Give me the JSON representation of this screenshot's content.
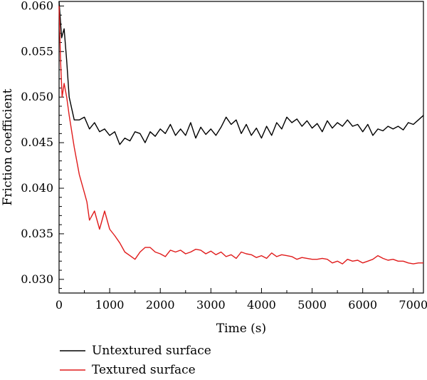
{
  "chart_data": {
    "type": "line",
    "title": "",
    "xlabel": "Time (s)",
    "ylabel": "Friction coefficient",
    "xlim": [
      0,
      7200
    ],
    "ylim": [
      0.0285,
      0.0605
    ],
    "xticks": [
      0,
      1000,
      2000,
      3000,
      4000,
      5000,
      6000,
      7000
    ],
    "xtick_labels": [
      "0",
      "1000",
      "2000",
      "3000",
      "4000",
      "5000",
      "6000",
      "7000"
    ],
    "yticks": [
      0.03,
      0.035,
      0.04,
      0.045,
      0.05,
      0.055,
      0.06
    ],
    "ytick_labels": [
      "0.030",
      "0.035",
      "0.040",
      "0.045",
      "0.050",
      "0.055",
      "0.060"
    ],
    "grid": false,
    "legend_position": "bottom-left",
    "series": [
      {
        "name": "Untextured surface",
        "color": "#000000",
        "x": [
          0,
          50,
          100,
          150,
          200,
          300,
          400,
          500,
          600,
          700,
          800,
          900,
          1000,
          1100,
          1200,
          1300,
          1400,
          1500,
          1600,
          1700,
          1800,
          1900,
          2000,
          2100,
          2200,
          2300,
          2400,
          2500,
          2600,
          2700,
          2800,
          2900,
          3000,
          3100,
          3200,
          3300,
          3400,
          3500,
          3600,
          3700,
          3800,
          3900,
          4000,
          4100,
          4200,
          4300,
          4400,
          4500,
          4600,
          4700,
          4800,
          4900,
          5000,
          5100,
          5200,
          5300,
          5400,
          5500,
          5600,
          5700,
          5800,
          5900,
          6000,
          6100,
          6200,
          6300,
          6400,
          6500,
          6600,
          6700,
          6800,
          6900,
          7000,
          7100,
          7200
        ],
        "y": [
          0.0605,
          0.0565,
          0.0575,
          0.054,
          0.05,
          0.0475,
          0.0475,
          0.0478,
          0.0465,
          0.0472,
          0.0462,
          0.0465,
          0.0458,
          0.0462,
          0.0448,
          0.0455,
          0.0452,
          0.0462,
          0.046,
          0.045,
          0.0462,
          0.0457,
          0.0465,
          0.046,
          0.047,
          0.0458,
          0.0465,
          0.0458,
          0.0472,
          0.0455,
          0.0467,
          0.0459,
          0.0465,
          0.0458,
          0.0467,
          0.0478,
          0.047,
          0.0475,
          0.046,
          0.047,
          0.0458,
          0.0466,
          0.0455,
          0.0468,
          0.0458,
          0.0472,
          0.0465,
          0.0478,
          0.0472,
          0.0476,
          0.0468,
          0.0474,
          0.0466,
          0.0471,
          0.0462,
          0.0474,
          0.0466,
          0.0472,
          0.0468,
          0.0475,
          0.0468,
          0.047,
          0.0462,
          0.047,
          0.0458,
          0.0465,
          0.0463,
          0.0468,
          0.0465,
          0.0468,
          0.0464,
          0.0472,
          0.047,
          0.0475,
          0.048
        ]
      },
      {
        "name": "Textured surface",
        "color": "#e01b1b",
        "x": [
          0,
          30,
          60,
          100,
          150,
          200,
          300,
          400,
          500,
          550,
          600,
          700,
          800,
          900,
          1000,
          1100,
          1200,
          1300,
          1400,
          1500,
          1600,
          1700,
          1800,
          1900,
          2000,
          2100,
          2200,
          2300,
          2400,
          2500,
          2600,
          2700,
          2800,
          2900,
          3000,
          3100,
          3200,
          3300,
          3400,
          3500,
          3600,
          3700,
          3800,
          3900,
          4000,
          4100,
          4200,
          4300,
          4400,
          4500,
          4600,
          4700,
          4800,
          4900,
          5000,
          5100,
          5200,
          5300,
          5400,
          5500,
          5600,
          5700,
          5800,
          5900,
          6000,
          6100,
          6200,
          6300,
          6400,
          6500,
          6600,
          6700,
          6800,
          6900,
          7000,
          7100,
          7200
        ],
        "y": [
          0.06,
          0.054,
          0.05,
          0.0515,
          0.05,
          0.048,
          0.0445,
          0.0415,
          0.0395,
          0.0385,
          0.0365,
          0.0375,
          0.0355,
          0.0375,
          0.0355,
          0.0348,
          0.034,
          0.033,
          0.0326,
          0.0322,
          0.033,
          0.0335,
          0.0335,
          0.033,
          0.0328,
          0.0325,
          0.0332,
          0.033,
          0.0332,
          0.0328,
          0.033,
          0.0333,
          0.0332,
          0.0328,
          0.0331,
          0.0327,
          0.033,
          0.0325,
          0.0327,
          0.0323,
          0.033,
          0.0328,
          0.0327,
          0.0324,
          0.0326,
          0.0323,
          0.0329,
          0.0325,
          0.0327,
          0.0326,
          0.0325,
          0.0322,
          0.0324,
          0.0323,
          0.0322,
          0.0322,
          0.0323,
          0.0322,
          0.0318,
          0.032,
          0.0317,
          0.0322,
          0.032,
          0.0321,
          0.0318,
          0.032,
          0.0322,
          0.0326,
          0.0323,
          0.0321,
          0.0322,
          0.032,
          0.032,
          0.0318,
          0.0317,
          0.0318,
          0.0318
        ]
      }
    ]
  }
}
